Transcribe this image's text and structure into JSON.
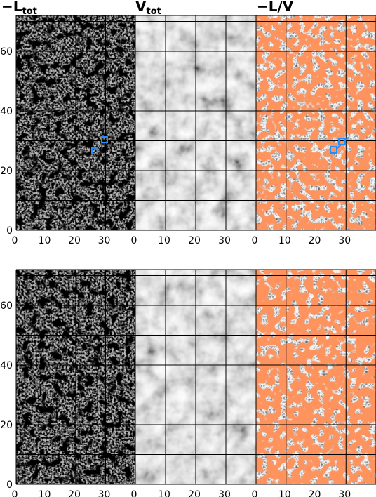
{
  "figure": {
    "panel_titles": [
      {
        "main": "−L",
        "sub": "tot"
      },
      {
        "main": "V",
        "sub": "tot"
      },
      {
        "main": "−L/V",
        "sub": ""
      }
    ],
    "y_ticks": [
      "0",
      "20",
      "40",
      "60"
    ],
    "x_ticks": [
      "0",
      "10",
      "20",
      "30"
    ],
    "rows": 2,
    "columns": 3,
    "grid": true,
    "colors": {
      "map_gray_dark": "#000000",
      "map_gray_light": "#ffffff",
      "highlight": "#ff4a1c",
      "marker": "#1f8fff",
      "grid_line": "#000000"
    }
  }
}
